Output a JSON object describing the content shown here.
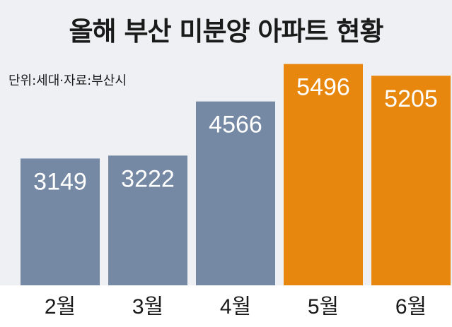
{
  "title": "올해 부산 미분양 아파트 현황",
  "unit_note": "단위:세대·자료:부산시",
  "colors": {
    "background": "#eef0f3",
    "bar_default": "#7589a5",
    "bar_highlight": "#e8870d",
    "axis_band": "#ffffff"
  },
  "chart_data": {
    "type": "bar",
    "title": "올해 부산 미분양 아파트 현황",
    "categories": [
      "2월",
      "3월",
      "4월",
      "5월",
      "6월"
    ],
    "values": [
      3149,
      3222,
      4566,
      5496,
      5205
    ],
    "highlighted": [
      false,
      false,
      false,
      true,
      true
    ],
    "ylim": [
      0,
      5700
    ],
    "xlabel": "",
    "ylabel": "",
    "grid": false,
    "data_labels": true
  }
}
